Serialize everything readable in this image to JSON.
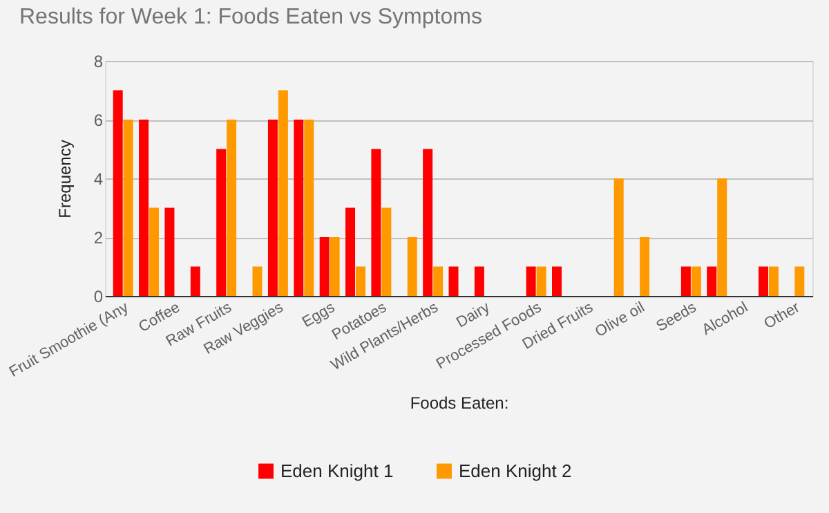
{
  "chart_data": {
    "type": "bar",
    "title": "Results for Week 1: Foods Eaten vs Symptoms",
    "xlabel": "Foods Eaten:",
    "ylabel": "Frequency",
    "categories": [
      "Fruit Smoothie (Any",
      null,
      "Coffee",
      null,
      "Raw Fruits",
      null,
      "Raw Veggies",
      null,
      "Eggs",
      null,
      "Potatoes",
      null,
      "Wild Plants/Herbs",
      null,
      "Dairy",
      null,
      "Processed Foods",
      null,
      "Dried Fruits",
      null,
      "Olive oil",
      null,
      "Seeds",
      null,
      "Alcohol",
      null,
      "Other"
    ],
    "series": [
      {
        "name": "Eden Knight 1",
        "color": "#ff0000",
        "values": [
          7,
          6,
          3,
          1,
          5,
          0,
          6,
          6,
          2,
          3,
          5,
          0,
          5,
          1,
          1,
          0,
          1,
          1,
          0,
          0,
          0,
          0,
          1,
          1,
          0,
          1,
          0
        ]
      },
      {
        "name": "Eden Knight 2",
        "color": "#ff9900",
        "values": [
          6,
          3,
          0,
          0,
          6,
          1,
          7,
          6,
          2,
          1,
          3,
          2,
          1,
          0,
          0,
          0,
          1,
          0,
          0,
          4,
          2,
          0,
          1,
          4,
          0,
          1,
          1
        ]
      }
    ],
    "ylim": [
      0,
      8
    ],
    "yticks": [
      0,
      2,
      4,
      6,
      8
    ],
    "grid": true,
    "legend": "bottom"
  }
}
